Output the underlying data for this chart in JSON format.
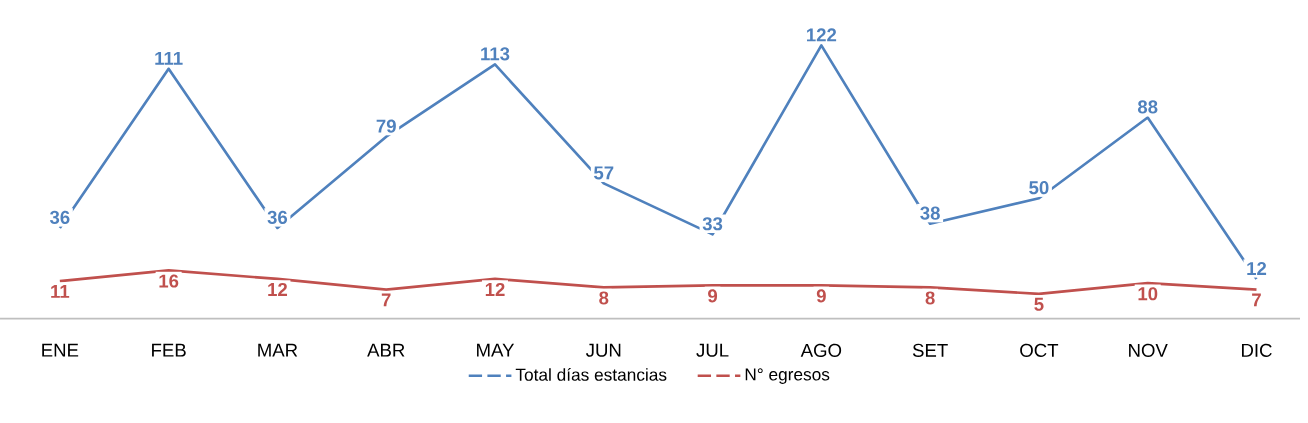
{
  "chart_data": {
    "type": "line",
    "categories": [
      "ENE",
      "FEB",
      "MAR",
      "ABR",
      "MAY",
      "JUN",
      "JUL",
      "AGO",
      "SET",
      "OCT",
      "NOV",
      "DIC"
    ],
    "series": [
      {
        "name": "Total días estancias",
        "color": "#4f81bd",
        "values": [
          36,
          111,
          36,
          79,
          113,
          57,
          33,
          122,
          38,
          50,
          88,
          12
        ]
      },
      {
        "name": "N° egresos",
        "color": "#c0504d",
        "values": [
          11,
          16,
          12,
          7,
          12,
          8,
          9,
          9,
          8,
          5,
          10,
          7
        ]
      }
    ],
    "tick_labels": "x",
    "data_labels": true,
    "legend": "bottom",
    "line_style": "solid"
  }
}
